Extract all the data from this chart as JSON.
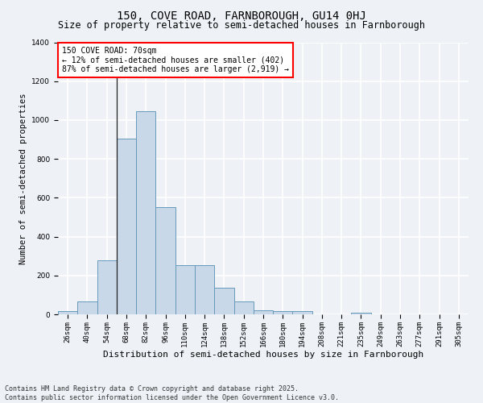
{
  "title": "150, COVE ROAD, FARNBOROUGH, GU14 0HJ",
  "subtitle": "Size of property relative to semi-detached houses in Farnborough",
  "xlabel": "Distribution of semi-detached houses by size in Farnborough",
  "ylabel": "Number of semi-detached properties",
  "categories": [
    "26sqm",
    "40sqm",
    "54sqm",
    "68sqm",
    "82sqm",
    "96sqm",
    "110sqm",
    "124sqm",
    "138sqm",
    "152sqm",
    "166sqm",
    "180sqm",
    "194sqm",
    "208sqm",
    "221sqm",
    "235sqm",
    "249sqm",
    "263sqm",
    "277sqm",
    "291sqm",
    "305sqm"
  ],
  "values": [
    15,
    65,
    280,
    905,
    1045,
    550,
    255,
    255,
    135,
    65,
    20,
    15,
    15,
    0,
    0,
    10,
    0,
    0,
    0,
    0,
    0
  ],
  "bar_color": "#c8d8e8",
  "bar_edge_color": "#6699bb",
  "vline_pos": 2.5,
  "annotation_title": "150 COVE ROAD: 70sqm",
  "annotation_line1": "← 12% of semi-detached houses are smaller (402)",
  "annotation_line2": "87% of semi-detached houses are larger (2,919) →",
  "annotation_box_color": "white",
  "annotation_box_edge_color": "red",
  "ylim": [
    0,
    1400
  ],
  "yticks": [
    0,
    200,
    400,
    600,
    800,
    1000,
    1200,
    1400
  ],
  "bg_color": "#eef2f7",
  "plot_bg_color": "#eef2f7",
  "grid_color": "white",
  "footer_line1": "Contains HM Land Registry data © Crown copyright and database right 2025.",
  "footer_line2": "Contains public sector information licensed under the Open Government Licence v3.0.",
  "title_fontsize": 10,
  "subtitle_fontsize": 8.5,
  "xlabel_fontsize": 8,
  "ylabel_fontsize": 7.5,
  "tick_fontsize": 6.5,
  "annotation_fontsize": 7,
  "footer_fontsize": 6
}
